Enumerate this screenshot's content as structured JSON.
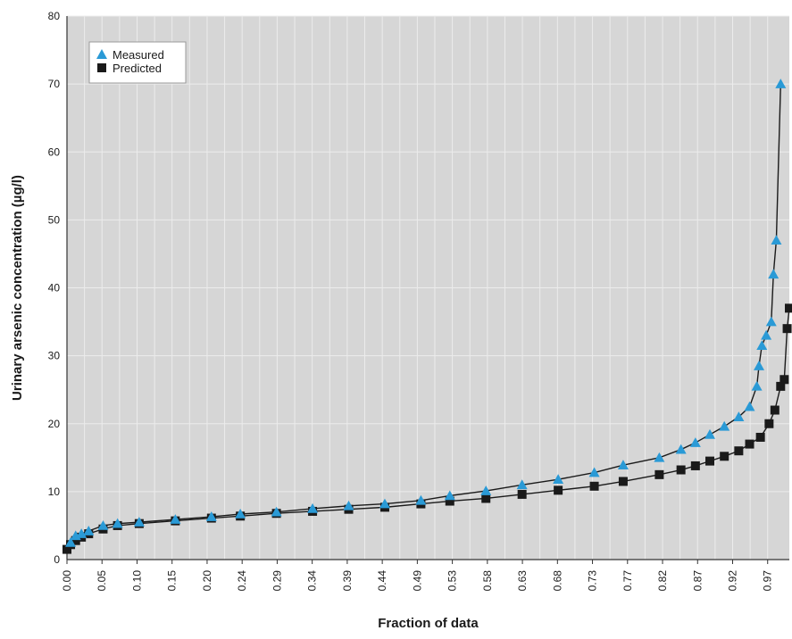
{
  "chart_data": {
    "type": "scatter",
    "title": "",
    "xlabel": "Fraction of data",
    "ylabel": "Urinary arsenic concentration (µg/l)",
    "ylim": [
      0,
      80
    ],
    "xlim": [
      0,
      1
    ],
    "y_ticks": [
      0,
      10,
      20,
      30,
      40,
      50,
      60,
      70,
      80
    ],
    "x_tick_labels": [
      "0.00",
      "0.05",
      "0.10",
      "0.15",
      "0.20",
      "0.24",
      "0.29",
      "0.34",
      "0.39",
      "0.44",
      "0.49",
      "0.53",
      "0.58",
      "0.63",
      "0.68",
      "0.73",
      "0.77",
      "0.82",
      "0.87",
      "0.92",
      "0.97"
    ],
    "grid": true,
    "legend_position": "top-left",
    "colors": {
      "plot_bg": "#d6d6d6",
      "grid": "#ececec",
      "measured": "#2a9ad6",
      "predicted": "#1a1a1a"
    },
    "series": [
      {
        "name": "Measured",
        "marker": "triangle",
        "points": [
          [
            0.005,
            2.5
          ],
          [
            0.012,
            3.5
          ],
          [
            0.02,
            3.8
          ],
          [
            0.03,
            4.2
          ],
          [
            0.05,
            5.0
          ],
          [
            0.07,
            5.3
          ],
          [
            0.1,
            5.5
          ],
          [
            0.15,
            5.9
          ],
          [
            0.2,
            6.3
          ],
          [
            0.24,
            6.7
          ],
          [
            0.29,
            7.0
          ],
          [
            0.34,
            7.5
          ],
          [
            0.39,
            7.9
          ],
          [
            0.44,
            8.2
          ],
          [
            0.49,
            8.7
          ],
          [
            0.53,
            9.4
          ],
          [
            0.58,
            10.1
          ],
          [
            0.63,
            11.0
          ],
          [
            0.68,
            11.8
          ],
          [
            0.73,
            12.8
          ],
          [
            0.77,
            13.9
          ],
          [
            0.82,
            15.0
          ],
          [
            0.85,
            16.2
          ],
          [
            0.87,
            17.2
          ],
          [
            0.89,
            18.4
          ],
          [
            0.91,
            19.6
          ],
          [
            0.93,
            21.0
          ],
          [
            0.945,
            22.5
          ],
          [
            0.955,
            25.5
          ],
          [
            0.958,
            28.5
          ],
          [
            0.962,
            31.5
          ],
          [
            0.968,
            33.0
          ],
          [
            0.975,
            35.0
          ],
          [
            0.978,
            42.0
          ],
          [
            0.982,
            47.0
          ],
          [
            0.988,
            70.0
          ]
        ]
      },
      {
        "name": "Predicted",
        "marker": "square",
        "points": [
          [
            0.0,
            1.5
          ],
          [
            0.005,
            2.2
          ],
          [
            0.012,
            2.8
          ],
          [
            0.02,
            3.3
          ],
          [
            0.03,
            3.8
          ],
          [
            0.05,
            4.5
          ],
          [
            0.07,
            5.0
          ],
          [
            0.1,
            5.3
          ],
          [
            0.15,
            5.7
          ],
          [
            0.2,
            6.1
          ],
          [
            0.24,
            6.4
          ],
          [
            0.29,
            6.8
          ],
          [
            0.34,
            7.1
          ],
          [
            0.39,
            7.4
          ],
          [
            0.44,
            7.7
          ],
          [
            0.49,
            8.2
          ],
          [
            0.53,
            8.6
          ],
          [
            0.58,
            9.0
          ],
          [
            0.63,
            9.6
          ],
          [
            0.68,
            10.2
          ],
          [
            0.73,
            10.8
          ],
          [
            0.77,
            11.5
          ],
          [
            0.82,
            12.5
          ],
          [
            0.85,
            13.2
          ],
          [
            0.87,
            13.8
          ],
          [
            0.89,
            14.5
          ],
          [
            0.91,
            15.2
          ],
          [
            0.93,
            16.0
          ],
          [
            0.945,
            17.0
          ],
          [
            0.96,
            18.0
          ],
          [
            0.972,
            20.0
          ],
          [
            0.98,
            22.0
          ],
          [
            0.988,
            25.5
          ],
          [
            0.993,
            26.5
          ],
          [
            0.997,
            34.0
          ],
          [
            1.0,
            37.0
          ]
        ]
      }
    ]
  }
}
